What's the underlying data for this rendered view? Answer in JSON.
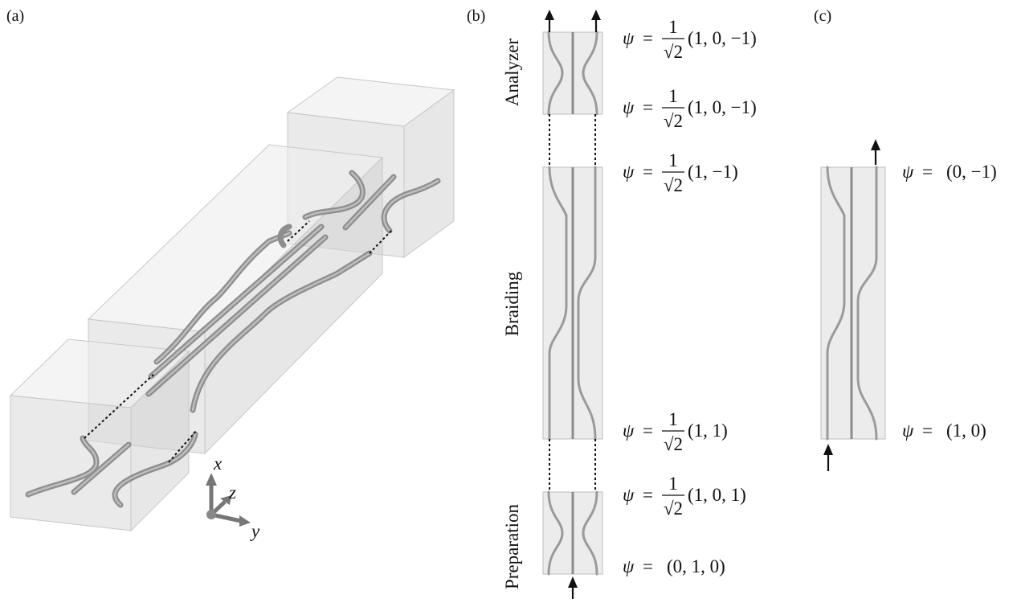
{
  "panels": {
    "a": {
      "label": "(a)",
      "axes": {
        "x": "x",
        "y": "y",
        "z": "z"
      }
    },
    "b": {
      "label": "(b)",
      "stages": {
        "analyzer": "Analyzer",
        "braiding": "Braiding",
        "preparation": "Preparation"
      },
      "states": {
        "analyzer_out": {
          "psi": "ψ",
          "eq": "=",
          "num": "1",
          "den": "√2",
          "vec": "(1, 0, −1)"
        },
        "analyzer_in": {
          "psi": "ψ",
          "eq": "=",
          "num": "1",
          "den": "√2",
          "vec": "(1, 0, −1)"
        },
        "braiding_out": {
          "psi": "ψ",
          "eq": "=",
          "num": "1",
          "den": "√2",
          "vec": "(1, −1)"
        },
        "braiding_in": {
          "psi": "ψ",
          "eq": "=",
          "num": "1",
          "den": "√2",
          "vec": "(1, 1)"
        },
        "prep_out": {
          "psi": "ψ",
          "eq": "=",
          "num": "1",
          "den": "√2",
          "vec": "(1, 0, 1)"
        },
        "prep_in": {
          "psi": "ψ",
          "eq": "=",
          "vec": "(0, 1, 0)"
        }
      }
    },
    "c": {
      "label": "(c)",
      "states": {
        "out": {
          "psi": "ψ",
          "eq": "=",
          "vec": "(0, −1)"
        },
        "in": {
          "psi": "ψ",
          "eq": "=",
          "vec": "(1, 0)"
        }
      }
    }
  }
}
